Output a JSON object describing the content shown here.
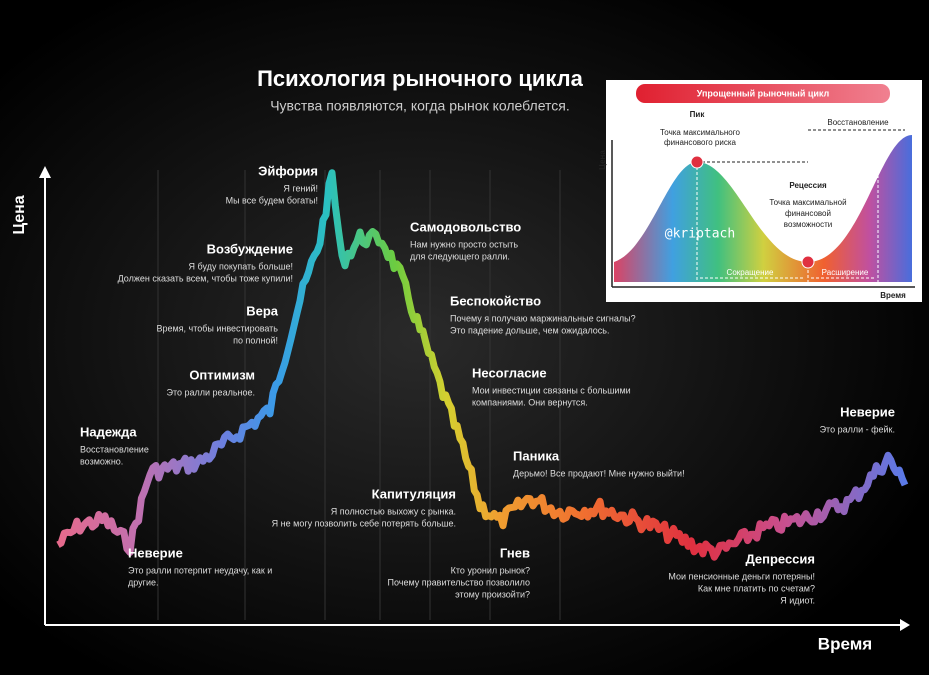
{
  "header": {
    "title": "Психология рыночного цикла",
    "subtitle": "Чувства появляются, когда рынок колеблется."
  },
  "axes": {
    "y_label": "Цена",
    "x_label": "Время"
  },
  "stages": [
    {
      "name": "Эйфория",
      "lines": [
        "Я гений!",
        "Мы все будем богаты!"
      ]
    },
    {
      "name": "Возбуждение",
      "lines": [
        "Я буду покупать больше!",
        "Должен сказать всем, чтобы тоже купили!"
      ]
    },
    {
      "name": "Вера",
      "lines": [
        "Время, чтобы инвестировать",
        "по полной!"
      ]
    },
    {
      "name": "Оптимизм",
      "lines": [
        "Это ралли реальное."
      ]
    },
    {
      "name": "Надежда",
      "lines": [
        "Восстановление",
        "возможно."
      ]
    },
    {
      "name": "Неверие",
      "lines": [
        "Это ралли потерпит неудачу, как и",
        "другие."
      ]
    },
    {
      "name": "Самодовольство",
      "lines": [
        "Нам нужно просто остыть",
        "для следующего ралли."
      ]
    },
    {
      "name": "Беспокойство",
      "lines": [
        "Почему я получаю маржинальные сигналы?",
        "Это падение дольше, чем ожидалось."
      ]
    },
    {
      "name": "Несогласие",
      "lines": [
        "Мои инвестиции связаны с большими",
        "компаниями. Они вернутся."
      ]
    },
    {
      "name": "Паника",
      "lines": [
        "Дерьмо! Все продают! Мне нужно выйти!"
      ]
    },
    {
      "name": "Капитуляция",
      "lines": [
        "Я полностью выхожу с рынка.",
        "Я не могу позволить себе потерять больше."
      ]
    },
    {
      "name": "Гнев",
      "lines": [
        "Кто уронил рынок?",
        "Почему правительство позволило",
        "этому произойти?"
      ]
    },
    {
      "name": "Депрессия",
      "lines": [
        "Мои пенсионные деньги потеряны!",
        "Как мне платить по счетам?",
        "Я идиот."
      ]
    },
    {
      "name": "Неверие",
      "lines": [
        "Это ралли - фейк."
      ]
    }
  ],
  "inset": {
    "banner": "Упрощенный рыночный цикл",
    "peak": "Пик",
    "peak_note": [
      "Точка максимального",
      "финансового риска"
    ],
    "recession": "Рецессия",
    "recession_note": [
      "Точка максимальной",
      "финансовой",
      "возможности"
    ],
    "recovery": "Восстановление",
    "contraction": "Сокращение",
    "expansion": "Расширение",
    "y_label": "Цена",
    "x_label": "Время",
    "watermark": "@kriptach"
  }
}
